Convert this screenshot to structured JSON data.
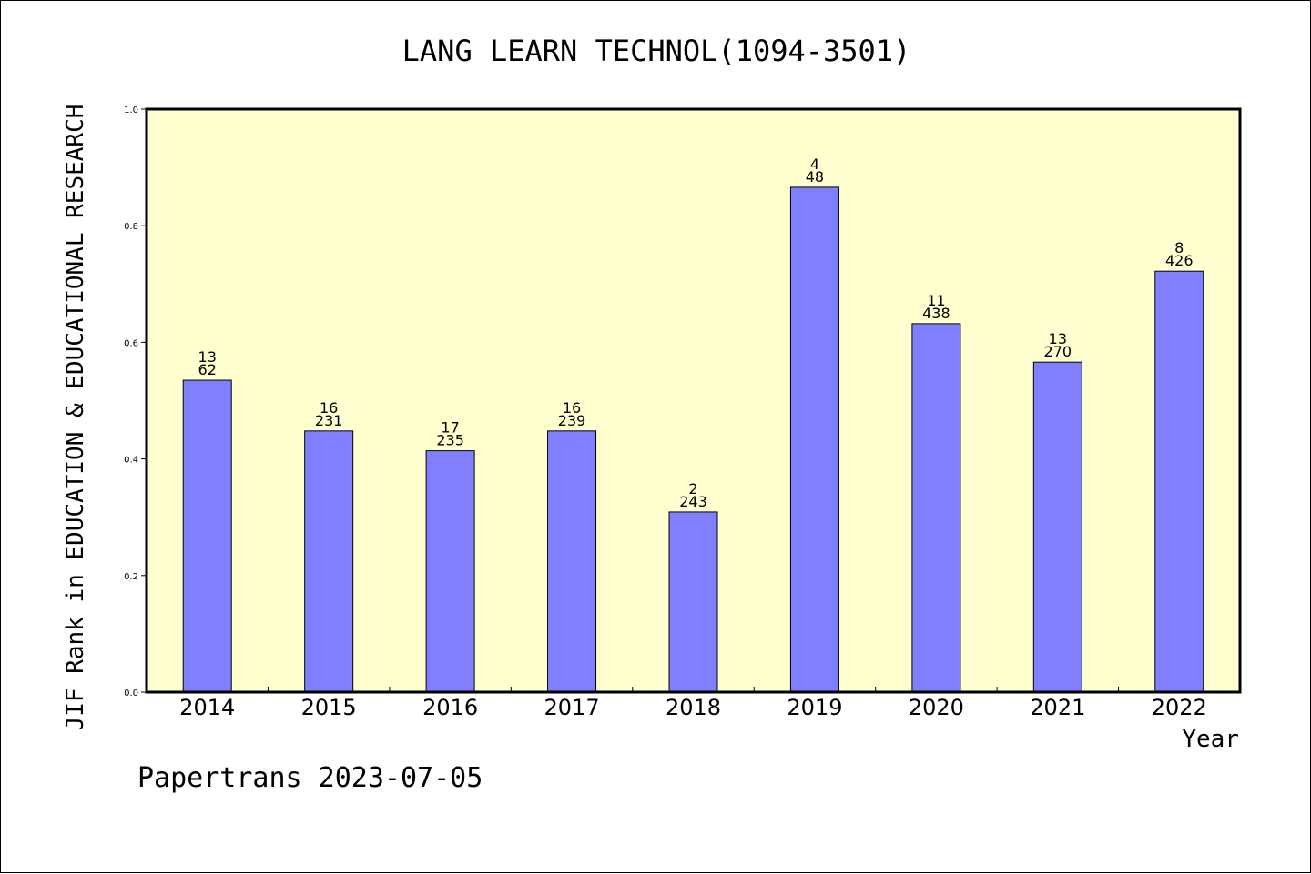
{
  "chart_data": {
    "type": "bar",
    "title": "LANG LEARN TECHNOL(1094-3501)",
    "xlabel": "Year",
    "ylabel": "JIF Rank in EDUCATION & EDUCATIONAL RESEARCH",
    "ylim": [
      0,
      1.0
    ],
    "yticks": [
      "0.0",
      "0.2",
      "0.4",
      "0.6",
      "0.8",
      "1.0"
    ],
    "categories": [
      "2014",
      "2015",
      "2016",
      "2017",
      "2018",
      "2019",
      "2020",
      "2021",
      "2022"
    ],
    "values": [
      0.535,
      0.448,
      0.414,
      0.448,
      0.309,
      0.866,
      0.632,
      0.566,
      0.722
    ],
    "label_top": [
      "13",
      "16",
      "17",
      "16",
      "2",
      "4",
      "11",
      "13",
      "8"
    ],
    "label_bottom": [
      "62",
      "231",
      "235",
      "239",
      "243",
      "48",
      "438",
      "270",
      "426"
    ],
    "colors": {
      "plot_background": "#FFFFD0",
      "bar_fill": "#8080FF",
      "bar_stroke": "#000000"
    },
    "grid": false
  },
  "footer": "Papertrans 2023-07-05"
}
